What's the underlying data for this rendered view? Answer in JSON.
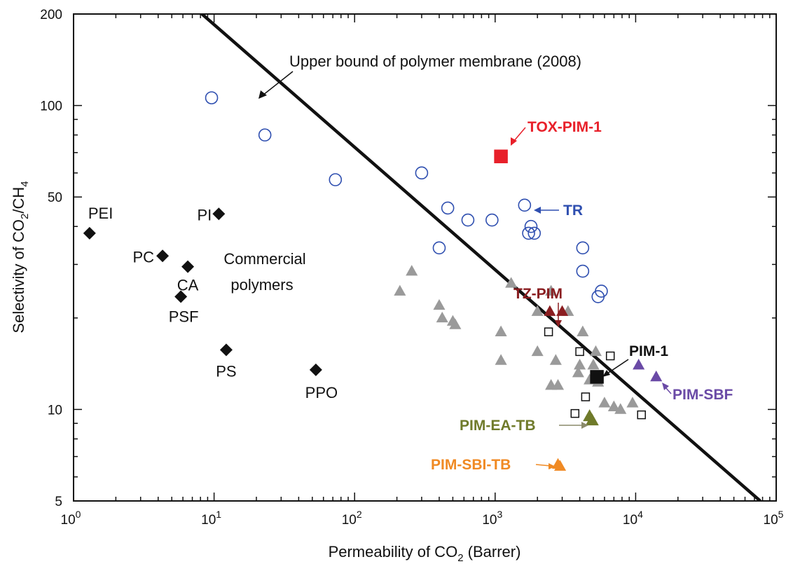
{
  "chart_data": {
    "type": "scatter",
    "xlabel": "Permeability of CO",
    "xlabel_sub": "2",
    "xlabel_tail": " (Barrer)",
    "ylabel": "Selectivity of CO",
    "ylabel_sub1": "2",
    "ylabel_mid": "/CH",
    "ylabel_sub2": "4",
    "x_scale": "log",
    "y_scale": "log",
    "xlim": [
      1,
      100000
    ],
    "ylim": [
      5,
      200
    ],
    "x_ticks": [
      {
        "value": 1,
        "base": "10",
        "exp": "0"
      },
      {
        "value": 10,
        "base": "10",
        "exp": "1"
      },
      {
        "value": 100,
        "base": "10",
        "exp": "2"
      },
      {
        "value": 1000,
        "base": "10",
        "exp": "3"
      },
      {
        "value": 10000,
        "base": "10",
        "exp": "4"
      },
      {
        "value": 100000,
        "base": "10",
        "exp": "5"
      }
    ],
    "y_ticks": [
      {
        "value": 5,
        "label": "5"
      },
      {
        "value": 10,
        "label": "10"
      },
      {
        "value": 50,
        "label": "50"
      },
      {
        "value": 100,
        "label": "100"
      },
      {
        "value": 200,
        "label": "200"
      }
    ],
    "upper_bound_line": {
      "label": "Upper bound of polymer membrane (2008)",
      "points": [
        [
          8.2,
          200
        ],
        [
          77000,
          5
        ]
      ]
    },
    "commercial_polymers": {
      "label_line1": "Commercial",
      "label_line2": "polymers",
      "color": "#111111",
      "points": [
        {
          "name": "PEI",
          "x": 1.3,
          "y": 38
        },
        {
          "name": "PC",
          "x": 4.3,
          "y": 32
        },
        {
          "name": "CA",
          "x": 6.5,
          "y": 29.5
        },
        {
          "name": "PI",
          "x": 10.8,
          "y": 44
        },
        {
          "name": "PSF",
          "x": 5.8,
          "y": 23.5
        },
        {
          "name": "PS",
          "x": 12.2,
          "y": 15.7
        },
        {
          "name": "PPO",
          "x": 53,
          "y": 13.5
        }
      ]
    },
    "tr_polymers": {
      "label": "TR",
      "color": "#2f4fb0",
      "points": [
        [
          9.6,
          106
        ],
        [
          23,
          80
        ],
        [
          73,
          57
        ],
        [
          300,
          60
        ],
        [
          460,
          46
        ],
        [
          640,
          42
        ],
        [
          950,
          42
        ],
        [
          400,
          34
        ],
        [
          1620,
          47
        ],
        [
          1800,
          40
        ],
        [
          1730,
          38
        ],
        [
          1900,
          38
        ],
        [
          4200,
          34
        ],
        [
          4200,
          28.5
        ],
        [
          5700,
          24.5
        ],
        [
          5400,
          23.5
        ]
      ]
    },
    "pim_family": {
      "color": "#9a9a9a",
      "points": [
        [
          210,
          24.5
        ],
        [
          255,
          28.5
        ],
        [
          400,
          22
        ],
        [
          420,
          20
        ],
        [
          500,
          19.5
        ],
        [
          520,
          19
        ],
        [
          1100,
          18
        ],
        [
          1100,
          14.5
        ],
        [
          1300,
          26
        ],
        [
          2000,
          21
        ],
        [
          2000,
          15.5
        ],
        [
          2500,
          24.5
        ],
        [
          2500,
          12
        ],
        [
          2700,
          14.5
        ],
        [
          2800,
          12
        ],
        [
          3300,
          21
        ],
        [
          3900,
          13.2
        ],
        [
          4000,
          14
        ],
        [
          4200,
          18
        ],
        [
          4700,
          12.5
        ],
        [
          5000,
          14
        ],
        [
          5200,
          15.5
        ],
        [
          5400,
          12.3
        ],
        [
          6000,
          10.5
        ],
        [
          7000,
          10.2
        ],
        [
          7800,
          10
        ],
        [
          9500,
          10.5
        ]
      ]
    },
    "pim_squares": {
      "color": "#111111",
      "points": [
        [
          2400,
          18
        ],
        [
          4000,
          15.5
        ],
        [
          6600,
          15
        ],
        [
          4400,
          11
        ],
        [
          3700,
          9.7
        ],
        [
          11000,
          9.6
        ]
      ]
    },
    "annotations": [
      {
        "name": "TOX-PIM-1",
        "label": "TOX-PIM-1",
        "color": "#e8202a",
        "marker": "square",
        "x": 1100,
        "y": 68
      },
      {
        "name": "TZ-PIM",
        "label": "TZ-PIM",
        "color": "#8a1d20",
        "marker": "triangle",
        "x": 2800,
        "y": 21
      },
      {
        "name": "PIM-1",
        "label": "PIM-1",
        "color": "#111111",
        "marker": "square",
        "x": 5300,
        "y": 12.8
      },
      {
        "name": "PIM-SBF",
        "label": "PIM-SBF",
        "color": "#6a4aa6",
        "marker": "triangle",
        "x": 10500,
        "y": 14
      },
      {
        "name": "PIM-EA-TB",
        "label": "PIM-EA-TB",
        "color": "#6f7a2a",
        "marker": "triangle",
        "x": 4900,
        "y": 9.2
      },
      {
        "name": "PIM-SBI-TB",
        "label": "PIM-SBI-TB",
        "color": "#f08a24",
        "marker": "triangle",
        "x": 2900,
        "y": 6.5
      }
    ],
    "pim_sbf_extra": [
      14000,
      12.8
    ],
    "pim_ea_tb_extra": [
      4700,
      9.5
    ],
    "pim_sbi_tb_extra": [
      2800,
      6.6
    ]
  }
}
